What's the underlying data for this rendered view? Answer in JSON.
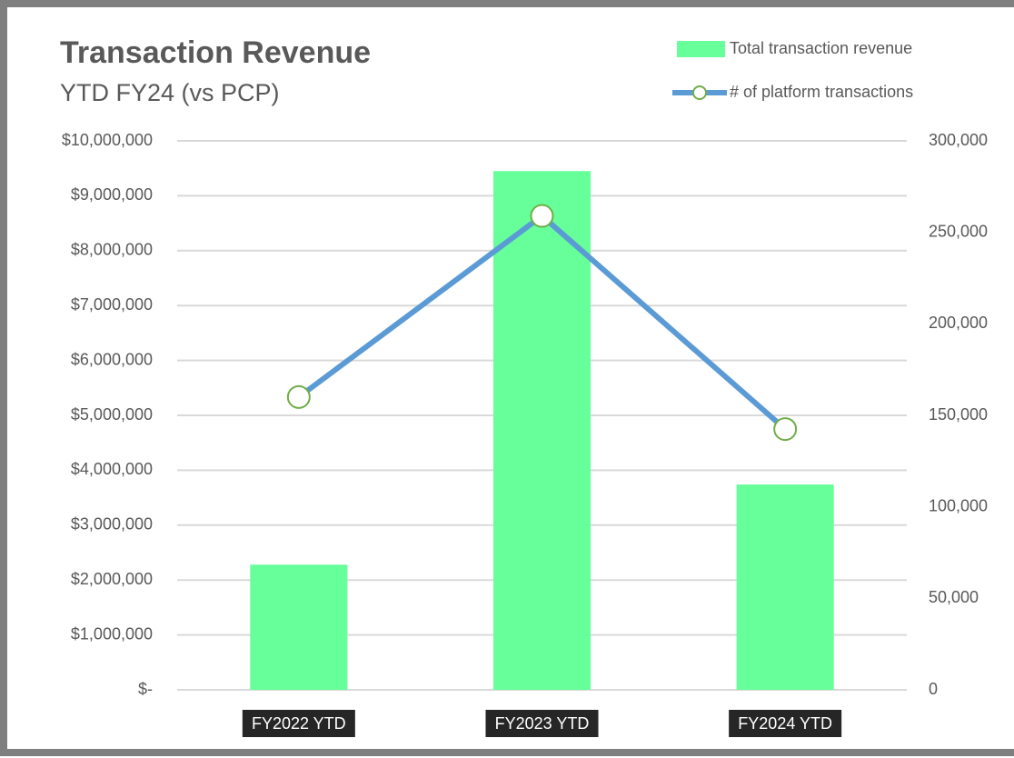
{
  "chart_data": {
    "type": "bar-line",
    "title": "Transaction Revenue",
    "subtitle": "YTD FY24 (vs PCP)",
    "categories": [
      "FY2022 YTD",
      "FY2023 YTD",
      "FY2024 YTD"
    ],
    "series": [
      {
        "name": "Total transaction revenue",
        "type": "bar",
        "color": "#66ff99",
        "axis": "y",
        "values": [
          2280000,
          9450000,
          3740000
        ]
      },
      {
        "name": "# of platform transactions",
        "type": "line",
        "color": "#5b9bd5",
        "marker_color": "#70ad47",
        "axis": "y2",
        "values": [
          160000,
          259000,
          142500
        ]
      }
    ],
    "ylim": [
      0,
      10000000
    ],
    "yticks": [
      {
        "value": 0,
        "label": "$-"
      },
      {
        "value": 1000000,
        "label": "$1,000,000"
      },
      {
        "value": 2000000,
        "label": "$2,000,000"
      },
      {
        "value": 3000000,
        "label": "$3,000,000"
      },
      {
        "value": 4000000,
        "label": "$4,000,000"
      },
      {
        "value": 5000000,
        "label": "$5,000,000"
      },
      {
        "value": 6000000,
        "label": "$6,000,000"
      },
      {
        "value": 7000000,
        "label": "$7,000,000"
      },
      {
        "value": 8000000,
        "label": "$8,000,000"
      },
      {
        "value": 9000000,
        "label": "$9,000,000"
      },
      {
        "value": 10000000,
        "label": "$10,000,000"
      }
    ],
    "y2lim": [
      0,
      300000
    ],
    "y2ticks": [
      0,
      {
        "value": 50000,
        "label": "50,000"
      },
      {
        "value": 100000,
        "label": "100,000"
      },
      {
        "value": 150000,
        "label": "150,000"
      },
      {
        "value": 200000,
        "label": "200,000"
      },
      {
        "value": 250000,
        "label": "250,000"
      },
      {
        "value": 300000,
        "label": "300,000"
      }
    ],
    "grid": true,
    "legend": "top-right"
  }
}
